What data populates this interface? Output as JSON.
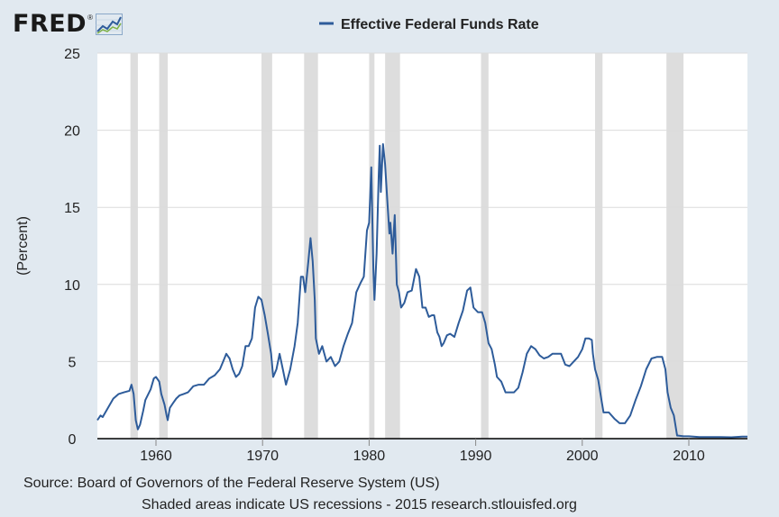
{
  "header": {
    "logo_text": "FRED",
    "logo_mark": "®",
    "logo_icon": "line-graph-icon"
  },
  "footer": {
    "source": "Source: Board of Governors of the Federal Reserve System (US)",
    "note": "Shaded areas indicate US recessions - 2015 research.stlouisfed.org"
  },
  "colors": {
    "series": "#2e5c9a",
    "background": "#e1e9f0",
    "plot": "#ffffff",
    "recession": "#dddddd",
    "grid": "#dcdcdc"
  },
  "chart_data": {
    "type": "line",
    "title": "",
    "xlabel": "",
    "ylabel": "(Percent)",
    "xlim": [
      1954.5,
      2015.5
    ],
    "ylim": [
      0,
      25
    ],
    "x_ticks": [
      1960,
      1970,
      1980,
      1990,
      2000,
      2010
    ],
    "y_ticks": [
      0,
      5,
      10,
      15,
      20,
      25
    ],
    "grid": "horizontal",
    "legend": "top-center",
    "recessions": [
      [
        1957.6,
        1958.3
      ],
      [
        1960.3,
        1961.1
      ],
      [
        1969.9,
        1970.9
      ],
      [
        1973.9,
        1975.2
      ],
      [
        1980.0,
        1980.5
      ],
      [
        1981.5,
        1982.9
      ],
      [
        1990.5,
        1991.2
      ],
      [
        2001.2,
        2001.9
      ],
      [
        2007.9,
        2009.5
      ]
    ],
    "series": [
      {
        "name": "Effective Federal Funds Rate",
        "x": [
          1954.5,
          1954.8,
          1955.0,
          1955.5,
          1956.0,
          1956.5,
          1957.0,
          1957.5,
          1957.7,
          1957.9,
          1958.1,
          1958.3,
          1958.5,
          1958.8,
          1959.0,
          1959.5,
          1959.8,
          1960.0,
          1960.3,
          1960.5,
          1960.8,
          1961.0,
          1961.1,
          1961.3,
          1961.6,
          1961.9,
          1962.2,
          1962.6,
          1963.0,
          1963.5,
          1964.0,
          1964.5,
          1965.0,
          1965.5,
          1966.0,
          1966.3,
          1966.6,
          1966.9,
          1967.2,
          1967.5,
          1967.8,
          1968.1,
          1968.4,
          1968.7,
          1969.0,
          1969.3,
          1969.6,
          1969.9,
          1970.2,
          1970.5,
          1970.8,
          1971.0,
          1971.3,
          1971.6,
          1971.9,
          1972.2,
          1972.6,
          1973.0,
          1973.3,
          1973.6,
          1973.8,
          1974.0,
          1974.3,
          1974.5,
          1974.7,
          1974.9,
          1975.0,
          1975.3,
          1975.6,
          1976.0,
          1976.4,
          1976.8,
          1977.2,
          1977.6,
          1978.0,
          1978.4,
          1978.8,
          1979.2,
          1979.5,
          1979.8,
          1980.0,
          1980.2,
          1980.4,
          1980.5,
          1980.7,
          1980.9,
          1981.0,
          1981.1,
          1981.3,
          1981.5,
          1981.7,
          1981.9,
          1982.0,
          1982.2,
          1982.4,
          1982.6,
          1982.8,
          1983.0,
          1983.3,
          1983.6,
          1984.0,
          1984.4,
          1984.7,
          1985.0,
          1985.3,
          1985.6,
          1985.9,
          1986.1,
          1986.4,
          1986.6,
          1986.8,
          1987.0,
          1987.3,
          1987.6,
          1988.0,
          1988.4,
          1988.8,
          1989.2,
          1989.5,
          1989.8,
          1990.2,
          1990.6,
          1990.9,
          1991.2,
          1991.5,
          1991.8,
          1992.0,
          1992.4,
          1992.8,
          1993.2,
          1993.6,
          1994.0,
          1994.4,
          1994.8,
          1995.2,
          1995.6,
          1996.0,
          1996.4,
          1996.8,
          1997.2,
          1997.6,
          1998.0,
          1998.4,
          1998.8,
          1999.2,
          1999.6,
          2000.0,
          2000.3,
          2000.6,
          2000.9,
          2001.0,
          2001.2,
          2001.5,
          2001.8,
          2002.0,
          2002.5,
          2003.0,
          2003.5,
          2004.0,
          2004.5,
          2005.0,
          2005.5,
          2006.0,
          2006.5,
          2007.0,
          2007.5,
          2007.8,
          2008.0,
          2008.3,
          2008.6,
          2008.9,
          2009.0,
          2009.5,
          2010.0,
          2011.0,
          2012.0,
          2013.0,
          2014.0,
          2015.0,
          2015.5
        ],
        "values": [
          1.2,
          1.5,
          1.4,
          2.0,
          2.6,
          2.9,
          3.0,
          3.1,
          3.5,
          2.9,
          1.2,
          0.6,
          0.9,
          1.8,
          2.5,
          3.2,
          3.9,
          4.0,
          3.7,
          2.9,
          2.2,
          1.5,
          1.2,
          2.0,
          2.3,
          2.6,
          2.8,
          2.9,
          3.0,
          3.4,
          3.5,
          3.5,
          3.9,
          4.1,
          4.5,
          5.0,
          5.5,
          5.2,
          4.5,
          4.0,
          4.2,
          4.7,
          6.0,
          6.0,
          6.5,
          8.5,
          9.2,
          9.0,
          8.0,
          6.8,
          5.5,
          4.0,
          4.5,
          5.5,
          4.5,
          3.5,
          4.5,
          6.0,
          7.5,
          10.5,
          10.5,
          9.5,
          11.5,
          13.0,
          11.5,
          9.0,
          6.5,
          5.5,
          6.0,
          5.0,
          5.3,
          4.7,
          5.0,
          6.0,
          6.8,
          7.5,
          9.5,
          10.1,
          10.5,
          13.5,
          14.0,
          17.6,
          11.0,
          9.0,
          12.0,
          17.0,
          19.0,
          16.0,
          19.1,
          17.8,
          15.5,
          13.3,
          14.0,
          12.0,
          14.5,
          10.0,
          9.5,
          8.5,
          8.8,
          9.5,
          9.6,
          11.0,
          10.5,
          8.5,
          8.5,
          7.9,
          8.0,
          8.0,
          6.9,
          6.6,
          6.0,
          6.2,
          6.7,
          6.8,
          6.6,
          7.5,
          8.3,
          9.6,
          9.8,
          8.5,
          8.2,
          8.2,
          7.5,
          6.2,
          5.8,
          4.8,
          4.0,
          3.7,
          3.0,
          3.0,
          3.0,
          3.3,
          4.3,
          5.5,
          6.0,
          5.8,
          5.4,
          5.2,
          5.3,
          5.5,
          5.5,
          5.5,
          4.8,
          4.7,
          5.0,
          5.3,
          5.8,
          6.5,
          6.5,
          6.4,
          5.5,
          4.5,
          3.8,
          2.5,
          1.7,
          1.7,
          1.3,
          1.0,
          1.0,
          1.5,
          2.5,
          3.4,
          4.5,
          5.2,
          5.3,
          5.3,
          4.5,
          3.0,
          2.0,
          1.5,
          0.2,
          0.2,
          0.15,
          0.15,
          0.1,
          0.1,
          0.1,
          0.09,
          0.13,
          0.13
        ]
      }
    ]
  }
}
